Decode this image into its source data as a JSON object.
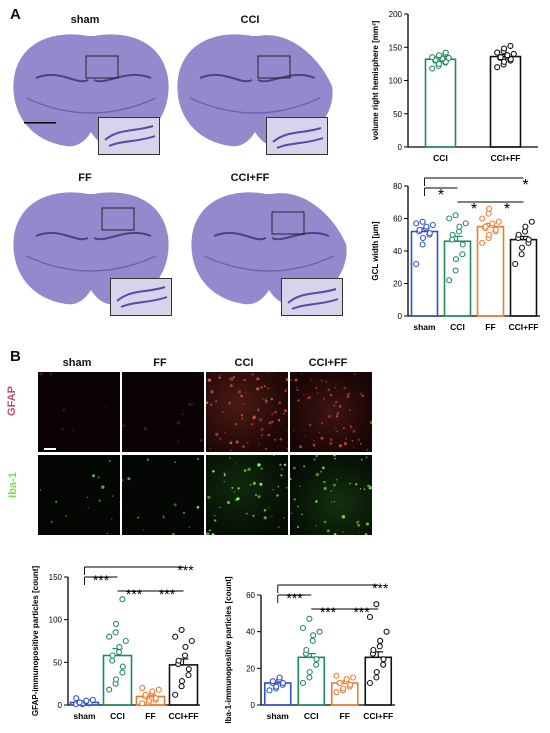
{
  "panel_a": {
    "letter": "A",
    "sections": [
      "sham",
      "CCI",
      "FF",
      "CCI+FF"
    ]
  },
  "panel_b": {
    "letter": "B",
    "columns": [
      "sham",
      "FF",
      "CCI",
      "CCI+FF"
    ],
    "rows": [
      {
        "label": "GFAP",
        "color": "#c0506a"
      },
      {
        "label": "Iba-1",
        "color": "#7ed957"
      }
    ]
  },
  "colors": {
    "sham": "#3050c8",
    "CCI": "#1f8a5a",
    "FF": "#f07a30",
    "CCI+FF": "#111111",
    "nissl": "#8a7cc8"
  },
  "chart_data": [
    {
      "id": "volume",
      "type": "bar",
      "ylabel": "volume right hemisphere [mm³]",
      "ylim": [
        0,
        200
      ],
      "yticks": [
        0,
        50,
        100,
        150,
        200
      ],
      "categories": [
        "CCI",
        "CCI+FF"
      ],
      "values": [
        132,
        136
      ],
      "sem": [
        3,
        3
      ],
      "colors": [
        "#1f8a5a",
        "#111111"
      ],
      "points": [
        [
          118,
          122,
          125,
          127,
          128,
          130,
          131,
          132,
          133,
          134,
          135,
          136,
          138,
          140,
          142
        ],
        [
          120,
          124,
          128,
          130,
          132,
          134,
          135,
          136,
          138,
          140,
          142,
          144,
          148,
          152
        ]
      ],
      "significance": []
    },
    {
      "id": "gcl",
      "type": "bar",
      "ylabel": "GCL width [µm]",
      "ylim": [
        0,
        80
      ],
      "yticks": [
        0,
        20,
        40,
        60,
        80
      ],
      "categories": [
        "sham",
        "CCI",
        "FF",
        "CCI+FF"
      ],
      "values": [
        52,
        46,
        55,
        47
      ],
      "sem": [
        2,
        3,
        2,
        2
      ],
      "colors": [
        "#3050c8",
        "#1f8a5a",
        "#f07a30",
        "#111111"
      ],
      "points": [
        [
          32,
          44,
          48,
          50,
          51,
          52,
          53,
          54,
          55,
          56,
          57,
          58
        ],
        [
          22,
          28,
          35,
          38,
          44,
          47,
          50,
          52,
          55,
          57,
          60,
          62
        ],
        [
          45,
          48,
          50,
          52,
          53,
          54,
          55,
          56,
          57,
          58,
          60,
          63,
          66
        ],
        [
          32,
          38,
          42,
          45,
          47,
          48,
          50,
          52,
          55,
          58
        ]
      ],
      "significance": [
        {
          "from": 0,
          "to": 1,
          "label": "*"
        },
        {
          "from": 0,
          "to": 3,
          "label": "*"
        },
        {
          "from": 1,
          "to": 2,
          "label": "*"
        },
        {
          "from": 2,
          "to": 3,
          "label": "*"
        }
      ]
    },
    {
      "id": "gfap",
      "type": "bar",
      "ylabel": "GFAP-immunopositive particles [count]",
      "ylim": [
        0,
        150
      ],
      "yticks": [
        0,
        50,
        100,
        150
      ],
      "categories": [
        "sham",
        "CCI",
        "FF",
        "CCI+FF"
      ],
      "values": [
        3,
        58,
        10,
        47
      ],
      "sem": [
        1,
        8,
        2,
        7
      ],
      "colors": [
        "#3050c8",
        "#1f8a5a",
        "#f07a30",
        "#111111"
      ],
      "points": [
        [
          1,
          1,
          2,
          2,
          3,
          3,
          3,
          4,
          5,
          6,
          8
        ],
        [
          18,
          25,
          30,
          38,
          45,
          52,
          58,
          62,
          68,
          75,
          80,
          85,
          95,
          124
        ],
        [
          2,
          3,
          5,
          6,
          8,
          10,
          12,
          14,
          16,
          18,
          20
        ],
        [
          12,
          22,
          28,
          35,
          42,
          48,
          52,
          58,
          68,
          75,
          80,
          88
        ]
      ],
      "significance": [
        {
          "from": 0,
          "to": 1,
          "label": "***"
        },
        {
          "from": 0,
          "to": 3,
          "label": "***"
        },
        {
          "from": 1,
          "to": 2,
          "label": "***"
        },
        {
          "from": 2,
          "to": 3,
          "label": "***"
        }
      ]
    },
    {
      "id": "iba",
      "type": "bar",
      "ylabel": "Iba-1-immunopositive particles [count]",
      "ylim": [
        0,
        60
      ],
      "yticks": [
        0,
        20,
        40,
        60
      ],
      "categories": [
        "sham",
        "CCI",
        "FF",
        "CCI+FF"
      ],
      "values": [
        12,
        26,
        12,
        26
      ],
      "sem": [
        1,
        2,
        1,
        3
      ],
      "colors": [
        "#3050c8",
        "#1f8a5a",
        "#f07a30",
        "#111111"
      ],
      "points": [
        [
          8,
          9,
          10,
          11,
          12,
          12,
          13,
          14,
          15
        ],
        [
          12,
          15,
          18,
          22,
          25,
          28,
          30,
          35,
          38,
          40,
          42,
          47
        ],
        [
          7,
          8,
          9,
          10,
          11,
          12,
          12,
          13,
          14,
          15,
          16
        ],
        [
          12,
          15,
          18,
          22,
          25,
          28,
          30,
          32,
          35,
          40,
          48,
          55
        ]
      ],
      "significance": [
        {
          "from": 0,
          "to": 1,
          "label": "***"
        },
        {
          "from": 0,
          "to": 3,
          "label": "***"
        },
        {
          "from": 1,
          "to": 2,
          "label": "***"
        },
        {
          "from": 2,
          "to": 3,
          "label": "***"
        }
      ]
    }
  ]
}
